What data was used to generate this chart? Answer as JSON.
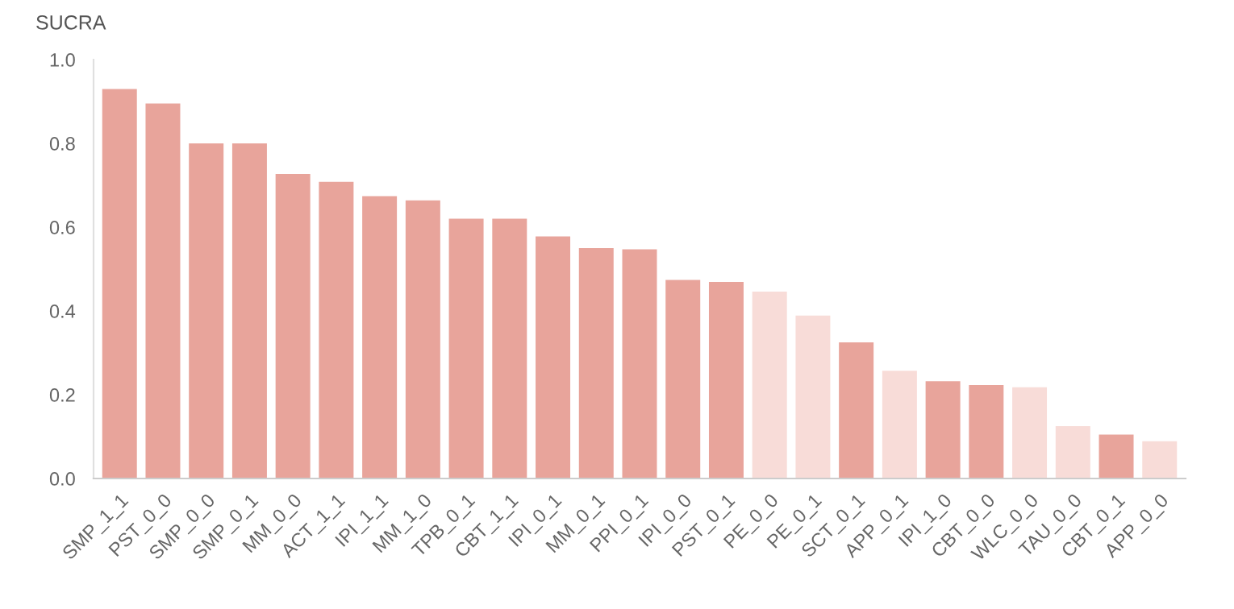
{
  "chart_data": {
    "type": "bar",
    "title": "SUCRA",
    "categories": [
      "SMP_1_1",
      "PST_0_0",
      "SMP_0_0",
      "SMP_0_1",
      "MM_0_0",
      "ACT_1_1",
      "IPI_1_1",
      "MM_1_0",
      "TPB_0_1",
      "CBT_1_1",
      "IPI_0_1",
      "MM_0_1",
      "PPI_0_1",
      "IPI_0_0",
      "PST_0_1",
      "PE_0_0",
      "PE_0_1",
      "SCT_0_1",
      "APP_0_1",
      "IPI_1_0",
      "CBT_0_0",
      "WLC_0_0",
      "TAU_0_0",
      "CBT_0_1",
      "APP_0_0"
    ],
    "values": [
      0.93,
      0.895,
      0.8,
      0.8,
      0.727,
      0.708,
      0.674,
      0.664,
      0.62,
      0.62,
      0.578,
      0.55,
      0.547,
      0.474,
      0.469,
      0.446,
      0.389,
      0.325,
      0.257,
      0.232,
      0.223,
      0.218,
      0.125,
      0.105,
      0.089
    ],
    "colors": [
      "#e8a49b",
      "#e8a49b",
      "#e8a49b",
      "#e8a49b",
      "#e8a49b",
      "#e8a49b",
      "#e8a49b",
      "#e8a49b",
      "#e8a49b",
      "#e8a49b",
      "#e8a49b",
      "#e8a49b",
      "#e8a49b",
      "#e8a49b",
      "#e8a49b",
      "#f8dcd8",
      "#f8dcd8",
      "#e8a49b",
      "#f8dcd8",
      "#e8a49b",
      "#e8a49b",
      "#f8dcd8",
      "#f8dcd8",
      "#e8a49b",
      "#f8dcd8"
    ],
    "ylim": [
      0,
      1.0
    ],
    "yticks": [
      {
        "value": 0,
        "label": "0.0"
      },
      {
        "value": 0.2,
        "label": "0.2"
      },
      {
        "value": 0.4,
        "label": "0.4"
      },
      {
        "value": 0.6,
        "label": "0.6"
      },
      {
        "value": 0.8,
        "label": "0.8"
      },
      {
        "value": 1.0,
        "label": "1.0"
      }
    ],
    "grid": false
  }
}
